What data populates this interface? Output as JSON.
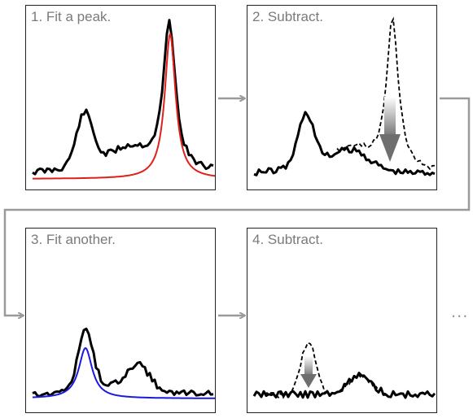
{
  "panels": [
    {
      "id": "p1",
      "title": "1. Fit a peak."
    },
    {
      "id": "p2",
      "title": "2. Subtract."
    },
    {
      "id": "p3",
      "title": "3. Fit another."
    },
    {
      "id": "p4",
      "title": "4. Subtract."
    }
  ],
  "continuation": "...",
  "colors": {
    "data_line": "#000000",
    "fit_peak_1": "#e0201b",
    "fit_peak_2": "#1a1adf",
    "arrow": "#9a9a9a",
    "frame": "#222222",
    "title_text": "#7a7a7a"
  }
}
